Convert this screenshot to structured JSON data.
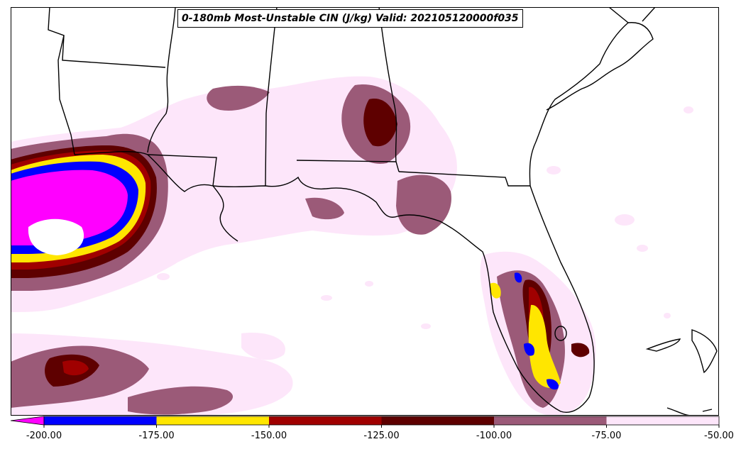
{
  "title": "0-180mb Most-Unstable CIN (J/kg) Valid: 202105120000f035",
  "colorbar": {
    "ticks": [
      "-200.00",
      "-175.00",
      "-150.00",
      "-125.00",
      "-100.00",
      "-75.00",
      "-50.00"
    ],
    "bins": [
      {
        "from": -200,
        "to": -175,
        "color": "#0000ff"
      },
      {
        "from": -175,
        "to": -150,
        "color": "#ffe600"
      },
      {
        "from": -150,
        "to": -125,
        "color": "#a00000"
      },
      {
        "from": -125,
        "to": -100,
        "color": "#5e0000"
      },
      {
        "from": -100,
        "to": -75,
        "color": "#9b5a78"
      },
      {
        "from": -75,
        "to": -50,
        "color": "#fde6fa"
      }
    ],
    "under_color": "#ff00ff"
  },
  "colors": {
    "lt_pink": "#fde6fa",
    "mauve": "#9b5a78",
    "dark_red": "#5e0000",
    "red": "#a00000",
    "yellow": "#ffe600",
    "blue": "#0000ff",
    "magenta": "#ff00ff",
    "outline": "#000000"
  }
}
